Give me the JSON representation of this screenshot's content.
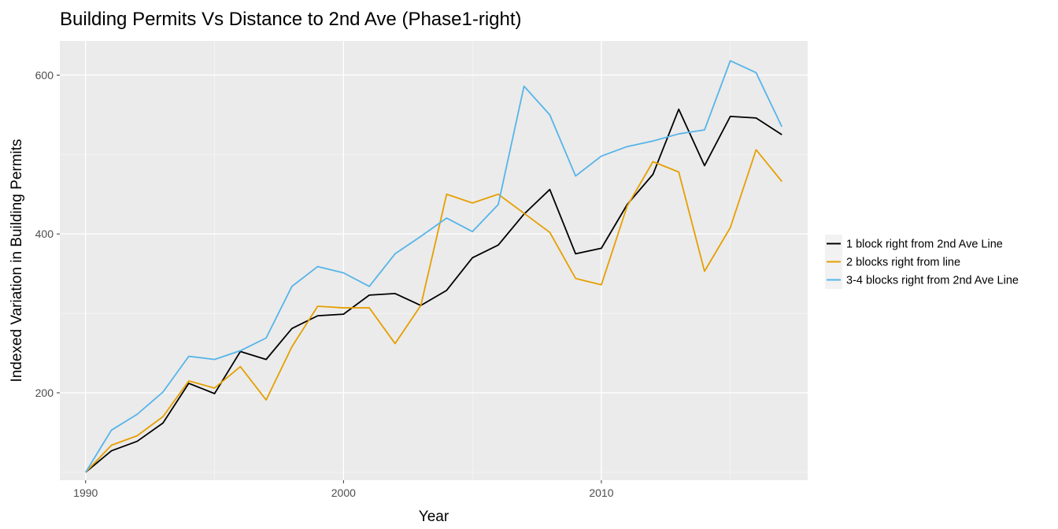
{
  "chart_data": {
    "type": "line",
    "title": "Building Permits Vs Distance to 2nd Ave (Phase1-right)",
    "xlabel": "Year",
    "ylabel": "Indexed Variation in Building Permits",
    "xlim": [
      1989,
      2018
    ],
    "ylim": [
      90,
      643
    ],
    "xticks": [
      1990,
      2000,
      2010
    ],
    "yticks": [
      200,
      400,
      600
    ],
    "grid": true,
    "legend_position": "right",
    "x": [
      1990,
      1991,
      1992,
      1993,
      1994,
      1995,
      1996,
      1997,
      1998,
      1999,
      2000,
      2001,
      2002,
      2003,
      2004,
      2005,
      2006,
      2007,
      2008,
      2009,
      2010,
      2011,
      2012,
      2013,
      2014,
      2015,
      2016,
      2017
    ],
    "series": [
      {
        "name": "1 block right from 2nd Ave Line",
        "color": "#000000",
        "values": [
          100,
          127,
          139,
          162,
          212,
          199,
          252,
          242,
          281,
          297,
          299,
          323,
          325,
          310,
          329,
          370,
          386,
          425,
          456,
          375,
          382,
          437,
          475,
          557,
          486,
          548,
          546,
          525
        ]
      },
      {
        "name": "2 blocks right from line",
        "color": "#E69F00",
        "values": [
          100,
          134,
          146,
          170,
          215,
          206,
          233,
          191,
          258,
          309,
          307,
          307,
          262,
          310,
          450,
          439,
          450,
          426,
          402,
          344,
          336,
          435,
          491,
          478,
          353,
          408,
          506,
          466
        ]
      },
      {
        "name": "3-4 blocks right from 2nd Ave Line",
        "color": "#56B4E9",
        "values": [
          100,
          153,
          173,
          201,
          246,
          242,
          253,
          269,
          334,
          359,
          351,
          334,
          375,
          397,
          420,
          403,
          437,
          586,
          550,
          473,
          498,
          510,
          517,
          526,
          531,
          618,
          603,
          535
        ]
      }
    ]
  }
}
